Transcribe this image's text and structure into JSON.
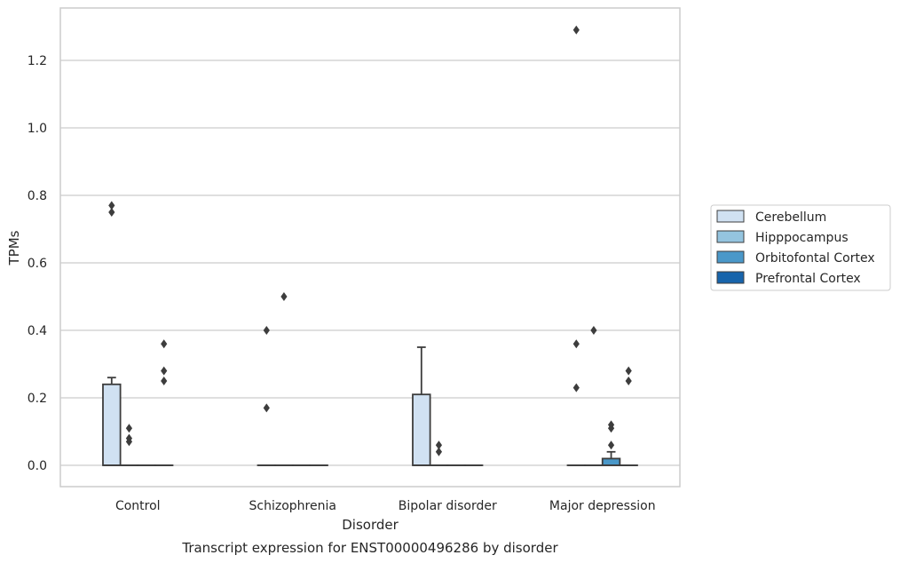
{
  "chart_data": {
    "type": "box",
    "title": "Transcript expression for ENST00000496286 by disorder",
    "xlabel": "Disorder",
    "ylabel": "TPMs",
    "ylim": [
      -0.065,
      1.36
    ],
    "yticks": [
      "0.0",
      "0.2",
      "0.4",
      "0.6",
      "0.8",
      "1.0",
      "1.2"
    ],
    "grid": "horizontal",
    "legend_position": "right",
    "categories": [
      "Control",
      "Schizophrenia",
      "Bipolar disorder",
      "Major depression"
    ],
    "series": [
      {
        "name": "Cerebellum",
        "color": "#d0e1f2",
        "boxes": [
          {
            "q1": 0.0,
            "median": 0.0,
            "q3": 0.24,
            "whisker_low": 0.0,
            "whisker_high": 0.26,
            "outliers": [
              0.75,
              0.77
            ]
          },
          {
            "q1": 0.0,
            "median": 0.0,
            "q3": 0.0,
            "whisker_low": 0.0,
            "whisker_high": 0.0,
            "outliers": [
              0.17,
              0.4
            ]
          },
          {
            "q1": 0.0,
            "median": 0.0,
            "q3": 0.21,
            "whisker_low": 0.0,
            "whisker_high": 0.35,
            "outliers": []
          },
          {
            "q1": 0.0,
            "median": 0.0,
            "q3": 0.0,
            "whisker_low": 0.0,
            "whisker_high": 0.0,
            "outliers": [
              0.23,
              0.36,
              1.29
            ]
          }
        ]
      },
      {
        "name": "Hipppocampus",
        "color": "#94c4df",
        "boxes": [
          {
            "q1": 0.0,
            "median": 0.0,
            "q3": 0.0,
            "whisker_low": 0.0,
            "whisker_high": 0.0,
            "outliers": [
              0.07,
              0.08,
              0.11
            ]
          },
          {
            "q1": 0.0,
            "median": 0.0,
            "q3": 0.0,
            "whisker_low": 0.0,
            "whisker_high": 0.0,
            "outliers": [
              0.5
            ]
          },
          {
            "q1": 0.0,
            "median": 0.0,
            "q3": 0.0,
            "whisker_low": 0.0,
            "whisker_high": 0.0,
            "outliers": [
              0.04,
              0.06
            ]
          },
          {
            "q1": 0.0,
            "median": 0.0,
            "q3": 0.0,
            "whisker_low": 0.0,
            "whisker_high": 0.0,
            "outliers": [
              0.4
            ]
          }
        ]
      },
      {
        "name": "Orbitofontal Cortex",
        "color": "#4a98c9",
        "boxes": [
          {
            "q1": 0.0,
            "median": 0.0,
            "q3": 0.0,
            "whisker_low": 0.0,
            "whisker_high": 0.0,
            "outliers": []
          },
          {
            "q1": 0.0,
            "median": 0.0,
            "q3": 0.0,
            "whisker_low": 0.0,
            "whisker_high": 0.0,
            "outliers": []
          },
          {
            "q1": 0.0,
            "median": 0.0,
            "q3": 0.0,
            "whisker_low": 0.0,
            "whisker_high": 0.0,
            "outliers": []
          },
          {
            "q1": 0.0,
            "median": 0.0,
            "q3": 0.02,
            "whisker_low": 0.0,
            "whisker_high": 0.04,
            "outliers": [
              0.06,
              0.11,
              0.12
            ]
          }
        ]
      },
      {
        "name": "Prefrontal Cortex",
        "color": "#1764ab",
        "boxes": [
          {
            "q1": 0.0,
            "median": 0.0,
            "q3": 0.0,
            "whisker_low": 0.0,
            "whisker_high": 0.0,
            "outliers": [
              0.25,
              0.28,
              0.36
            ]
          },
          {
            "q1": 0.0,
            "median": 0.0,
            "q3": 0.0,
            "whisker_low": 0.0,
            "whisker_high": 0.0,
            "outliers": []
          },
          {
            "q1": 0.0,
            "median": 0.0,
            "q3": 0.0,
            "whisker_low": 0.0,
            "whisker_high": 0.0,
            "outliers": []
          },
          {
            "q1": 0.0,
            "median": 0.0,
            "q3": 0.0,
            "whisker_low": 0.0,
            "whisker_high": 0.0,
            "outliers": [
              0.25,
              0.28
            ]
          }
        ]
      }
    ]
  }
}
